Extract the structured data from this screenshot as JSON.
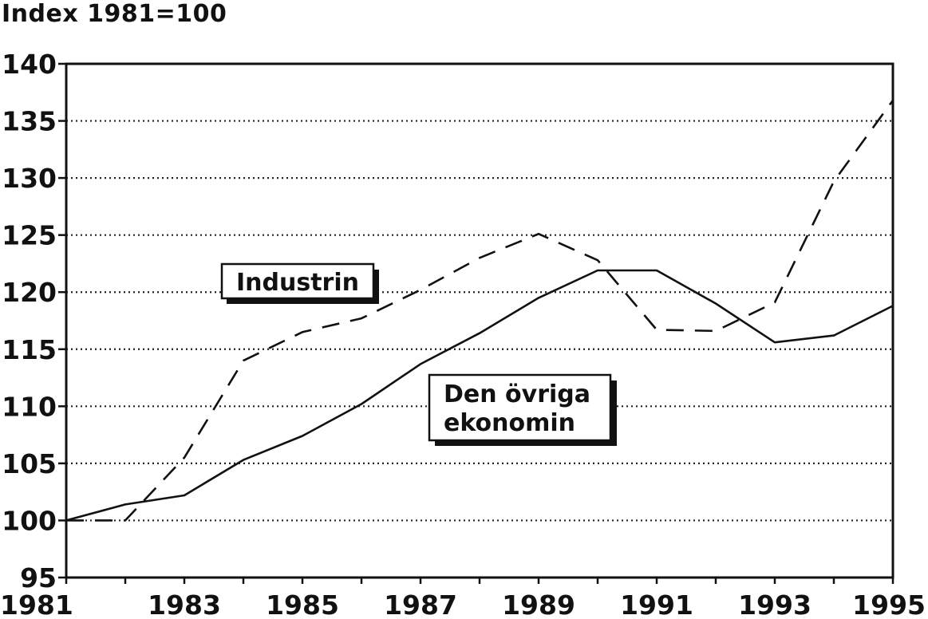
{
  "chart_data": {
    "type": "line",
    "ylabel": "Index 1981=100",
    "xlabel": "",
    "x": [
      1981,
      1982,
      1983,
      1984,
      1985,
      1986,
      1987,
      1988,
      1989,
      1990,
      1991,
      1992,
      1993,
      1994,
      1995
    ],
    "xticks": [
      "1981",
      "1983",
      "1985",
      "1987",
      "1989",
      "1991",
      "1993",
      "1995"
    ],
    "xlim": [
      1981,
      1995
    ],
    "ylim": [
      95,
      140
    ],
    "yticks": [
      "95",
      "100",
      "105",
      "110",
      "115",
      "120",
      "125",
      "130",
      "135",
      "140"
    ],
    "grid": "horizontal dotted",
    "series": [
      {
        "name": "Industrin",
        "style": "dashed",
        "values": [
          100,
          100,
          105.5,
          114,
          116.5,
          117.7,
          120.2,
          123,
          125.1,
          122.8,
          116.7,
          116.6,
          119.1,
          129.7,
          136.8
        ]
      },
      {
        "name": "Den övriga ekonomin",
        "style": "solid",
        "values": [
          100,
          101.4,
          102.2,
          105.3,
          107.4,
          110.2,
          113.7,
          116.4,
          119.5,
          121.9,
          121.9,
          119,
          115.6,
          116.2,
          118.8
        ]
      }
    ],
    "annotations": [
      {
        "lines": [
          "Industrin"
        ]
      },
      {
        "lines": [
          "Den övriga",
          "ekonomin"
        ]
      }
    ]
  }
}
